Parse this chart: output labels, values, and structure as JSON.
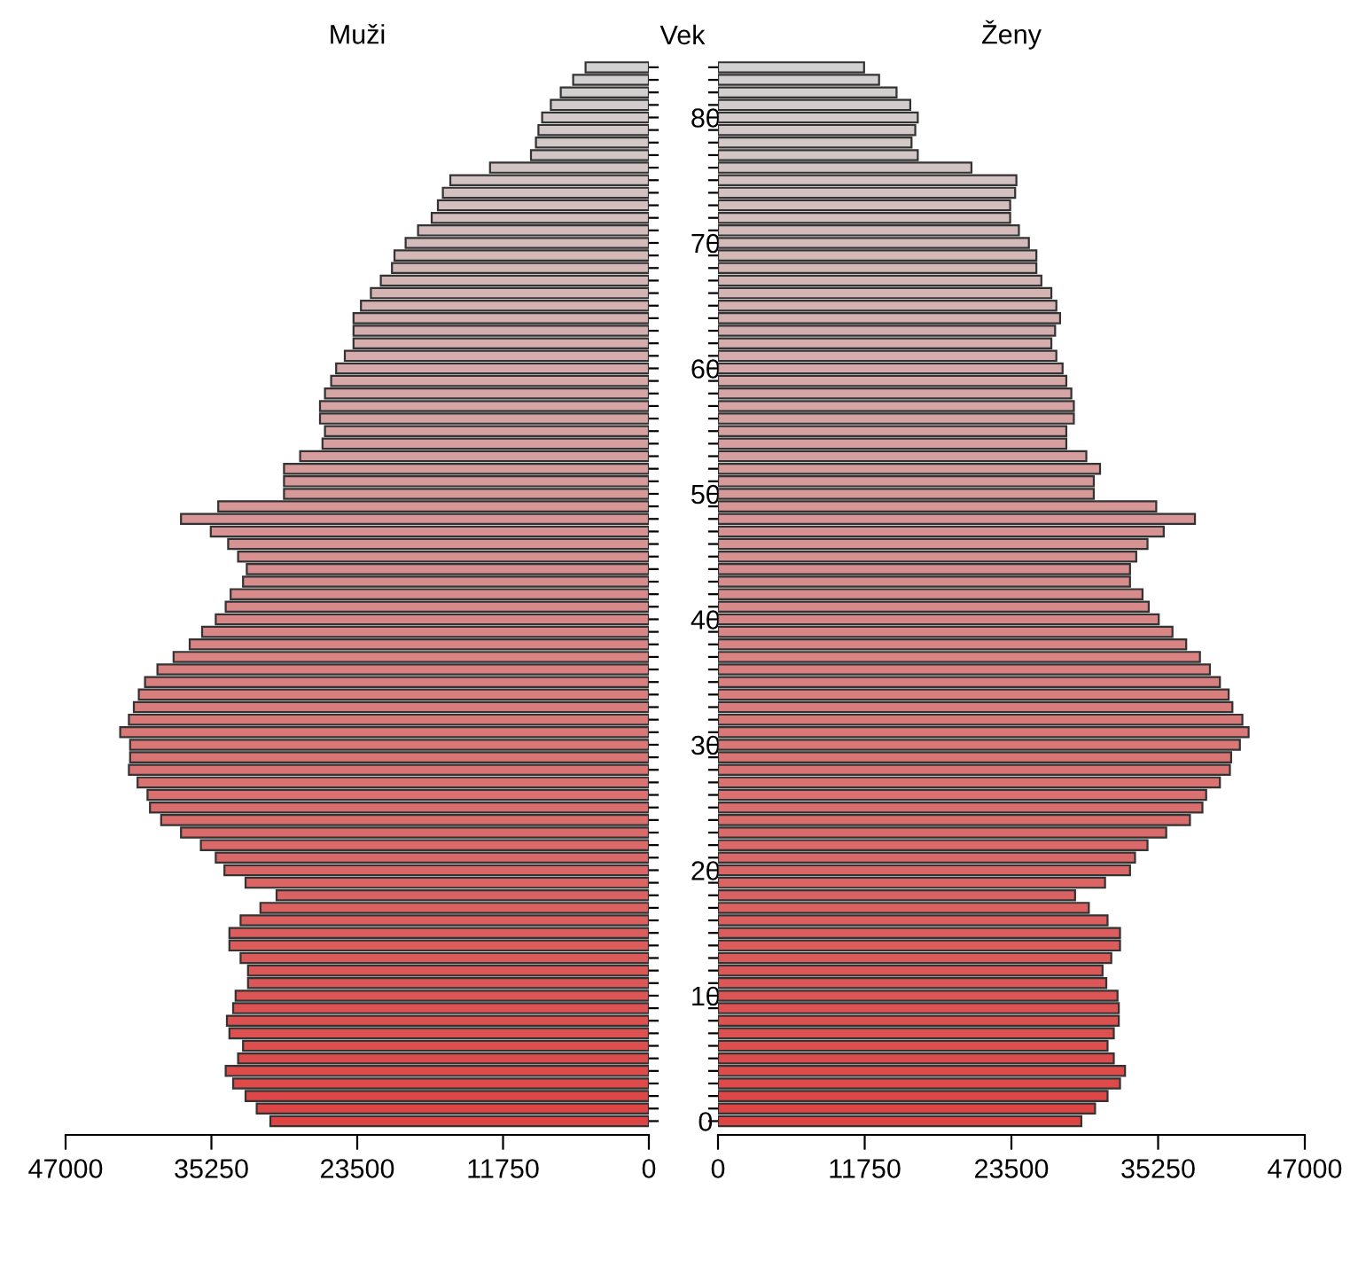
{
  "chart_data": [
    {
      "type": "bar",
      "orientation": "horizontal",
      "title": "Muži",
      "ylabel": "Vek",
      "categories": [
        null,
        null,
        null,
        null,
        "80",
        null,
        null,
        null,
        null,
        null,
        null,
        null,
        null,
        null,
        "70",
        null,
        null,
        null,
        null,
        null,
        null,
        null,
        null,
        null,
        "60",
        null,
        null,
        null,
        null,
        null,
        null,
        null,
        null,
        null,
        "50",
        null,
        null,
        null,
        null,
        null,
        null,
        null,
        null,
        null,
        "40",
        null,
        null,
        null,
        null,
        null,
        null,
        null,
        null,
        null,
        "30",
        null,
        null,
        null,
        null,
        null,
        null,
        null,
        null,
        null,
        "20",
        null,
        null,
        null,
        null,
        null,
        null,
        null,
        null,
        null,
        "10",
        null,
        null,
        null,
        null,
        null,
        null,
        null,
        null,
        null,
        "0"
      ],
      "values": [
        5100,
        6100,
        7100,
        7900,
        8600,
        8900,
        9100,
        9500,
        12800,
        16000,
        16600,
        17000,
        17500,
        18600,
        19600,
        20500,
        20700,
        21600,
        22400,
        23200,
        23800,
        23800,
        23800,
        24500,
        25200,
        25600,
        26100,
        26500,
        26500,
        26100,
        26300,
        28100,
        29400,
        29400,
        29400,
        34700,
        37700,
        35300,
        33900,
        33100,
        32400,
        32700,
        33700,
        34100,
        34900,
        36000,
        37000,
        38300,
        39600,
        40600,
        41100,
        41500,
        41900,
        42600,
        41800,
        41800,
        41900,
        41200,
        40400,
        40200,
        39300,
        37700,
        36100,
        34900,
        34200,
        32500,
        30000,
        31300,
        32900,
        33800,
        33800,
        32900,
        32300,
        32300,
        33300,
        33500,
        34000,
        33800,
        32700,
        33100,
        34100,
        33500,
        32500,
        31600,
        30500
      ],
      "colors": [
        "#d2d2d2",
        "#d2d0d0",
        "#d2cfcf",
        "#d2cdcd",
        "#d3cbcb",
        "#d3c9c9",
        "#d3c8c8",
        "#d3c6c6",
        "#d3c4c4",
        "#d3c3c3",
        "#d3c1c1",
        "#d4bfbf",
        "#d4bebe",
        "#d4bcbc",
        "#d4baba",
        "#d4b9b9",
        "#d4b7b7",
        "#d4b5b5",
        "#d5b4b4",
        "#d5b2b2",
        "#d5b0b0",
        "#d5afaf",
        "#d5adad",
        "#d5abab",
        "#d5a9a9",
        "#d6a8a8",
        "#d6a6a6",
        "#d6a4a4",
        "#d6a3a3",
        "#d6a1a1",
        "#d69f9f",
        "#d69e9e",
        "#d79c9c",
        "#d79a9a",
        "#d79898",
        "#d79797",
        "#d79595",
        "#d79393",
        "#d79292",
        "#d89090",
        "#d88e8e",
        "#d88d8d",
        "#d88b8b",
        "#d88989",
        "#d88888",
        "#d88686",
        "#d98484",
        "#d98383",
        "#d98181",
        "#d97f7f",
        "#d97d7d",
        "#d97c7c",
        "#d97a7a",
        "#da7878",
        "#da7777",
        "#da7575",
        "#da7373",
        "#da7272",
        "#da7070",
        "#da6e6e",
        "#db6d6d",
        "#db6b6b",
        "#db6969",
        "#db6868",
        "#db6666",
        "#db6464",
        "#db6262",
        "#dc6161",
        "#dc5f5f",
        "#dc5d5d",
        "#dc5c5c",
        "#dc5a5a",
        "#dc5858",
        "#dc5757",
        "#dd5555",
        "#dd5353",
        "#dd5151",
        "#dd5050",
        "#dd4e4e",
        "#dd4c4c",
        "#dd4b4b",
        "#de4949",
        "#de4747",
        "#de4646",
        "#de4444"
      ],
      "xlim": [
        47000,
        0
      ],
      "xticks": [
        47000,
        35250,
        23500,
        11750,
        0
      ],
      "grid": false,
      "legend": false
    },
    {
      "type": "bar",
      "orientation": "horizontal",
      "title": "Ženy",
      "tick_labels": "x",
      "categories": [
        null,
        null,
        null,
        null,
        "80",
        null,
        null,
        null,
        null,
        null,
        null,
        null,
        null,
        null,
        "70",
        null,
        null,
        null,
        null,
        null,
        null,
        null,
        null,
        null,
        "60",
        null,
        null,
        null,
        null,
        null,
        null,
        null,
        null,
        null,
        "50",
        null,
        null,
        null,
        null,
        null,
        null,
        null,
        null,
        null,
        "40",
        null,
        null,
        null,
        null,
        null,
        null,
        null,
        null,
        null,
        "30",
        null,
        null,
        null,
        null,
        null,
        null,
        null,
        null,
        null,
        "20",
        null,
        null,
        null,
        null,
        null,
        null,
        null,
        null,
        null,
        "10",
        null,
        null,
        null,
        null,
        null,
        null,
        null,
        null,
        null,
        "0"
      ],
      "values": [
        11700,
        12900,
        14300,
        15400,
        16000,
        15800,
        15500,
        16000,
        20300,
        23900,
        23800,
        23400,
        23400,
        24100,
        24900,
        25500,
        25500,
        25900,
        26700,
        27100,
        27400,
        27000,
        26700,
        27100,
        27600,
        27900,
        28300,
        28500,
        28500,
        27900,
        27900,
        29500,
        30600,
        30100,
        30100,
        35100,
        38200,
        35700,
        34400,
        33500,
        33000,
        33000,
        34000,
        34500,
        35300,
        36400,
        37500,
        38600,
        39400,
        40200,
        40900,
        41200,
        42000,
        42500,
        41800,
        41100,
        41000,
        40200,
        39100,
        38800,
        37800,
        35900,
        34400,
        33400,
        33000,
        31000,
        28600,
        29700,
        31200,
        32200,
        32200,
        31500,
        30800,
        31100,
        32000,
        32100,
        32100,
        31700,
        31200,
        31700,
        32600,
        32200,
        31200,
        30200,
        29100
      ],
      "colors": [
        "#d2d2d2",
        "#d2d0d0",
        "#d2cfcf",
        "#d2cdcd",
        "#d3cbcb",
        "#d3c9c9",
        "#d3c8c8",
        "#d3c6c6",
        "#d3c4c4",
        "#d3c3c3",
        "#d3c1c1",
        "#d4bfbf",
        "#d4bebe",
        "#d4bcbc",
        "#d4baba",
        "#d4b9b9",
        "#d4b7b7",
        "#d4b5b5",
        "#d5b4b4",
        "#d5b2b2",
        "#d5b0b0",
        "#d5afaf",
        "#d5adad",
        "#d5abab",
        "#d5a9a9",
        "#d6a8a8",
        "#d6a6a6",
        "#d6a4a4",
        "#d6a3a3",
        "#d6a1a1",
        "#d69f9f",
        "#d69e9e",
        "#d79c9c",
        "#d79a9a",
        "#d79898",
        "#d79797",
        "#d79595",
        "#d79393",
        "#d79292",
        "#d89090",
        "#d88e8e",
        "#d88d8d",
        "#d88b8b",
        "#d88989",
        "#d88888",
        "#d88686",
        "#d98484",
        "#d98383",
        "#d98181",
        "#d97f7f",
        "#d97d7d",
        "#d97c7c",
        "#d97a7a",
        "#da7878",
        "#da7777",
        "#da7575",
        "#da7373",
        "#da7272",
        "#da7070",
        "#da6e6e",
        "#db6d6d",
        "#db6b6b",
        "#db6969",
        "#db6868",
        "#db6666",
        "#db6464",
        "#db6262",
        "#dc6161",
        "#dc5f5f",
        "#dc5d5d",
        "#dc5c5c",
        "#dc5a5a",
        "#dc5858",
        "#dc5757",
        "#dd5555",
        "#dd5353",
        "#dd5151",
        "#dd5050",
        "#dd4e4e",
        "#dd4c4c",
        "#dd4b4b",
        "#de4949",
        "#de4747",
        "#de4646",
        "#de4444"
      ],
      "xlim": [
        0,
        47000
      ],
      "xticks": [
        0,
        11750,
        23500,
        35250,
        47000
      ],
      "grid": false,
      "legend": false
    }
  ]
}
